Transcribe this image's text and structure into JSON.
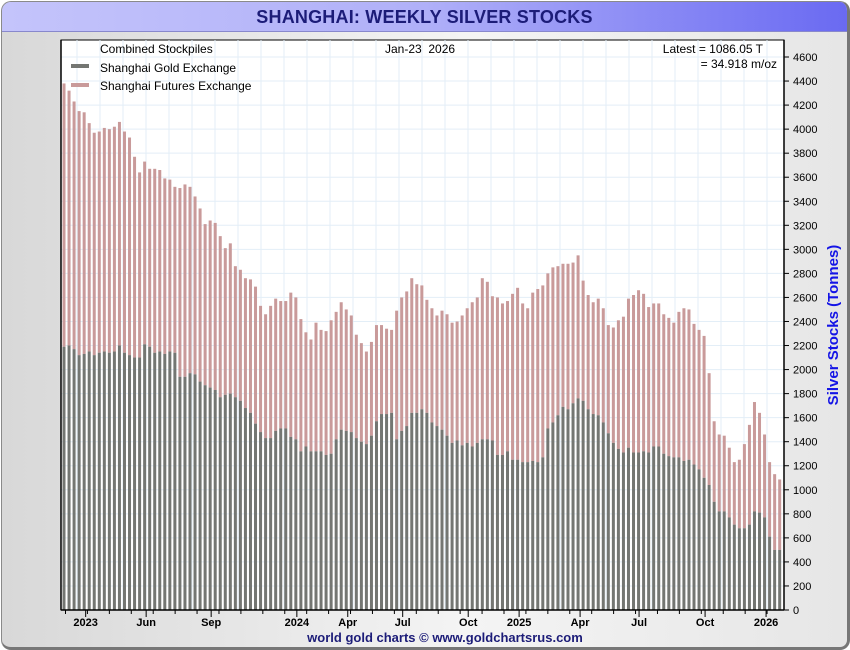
{
  "chart_data": {
    "type": "bar",
    "stacked": true,
    "title": "SHANGHAI: WEEKLY SILVER STOCKS",
    "subtitle": "Combined Stockpiles",
    "date_label": "Jan-23  2026",
    "latest_line1": "Latest = 1086.05 T",
    "latest_line2": "= 34.918 m/oz",
    "xlabel": "",
    "ylabel": "Silver Stocks (Tonnes)",
    "ylim": [
      0,
      4740
    ],
    "y_ticks": [
      "0",
      "200",
      "400",
      "600",
      "800",
      "1000",
      "1200",
      "1400",
      "1600",
      "1800",
      "2000",
      "2200",
      "2400",
      "2600",
      "2800",
      "3000",
      "3200",
      "3400",
      "3600",
      "3800",
      "4000",
      "4200",
      "4400",
      "4600"
    ],
    "x_ticks": [
      {
        "label": "2023",
        "bar": 4.3,
        "bold": true
      },
      {
        "label": "Jun",
        "bar": 16.3
      },
      {
        "label": "Sep",
        "bar": 29.2
      },
      {
        "label": "2024",
        "bar": 46.2,
        "bold": true
      },
      {
        "label": "Apr",
        "bar": 56.3
      },
      {
        "label": "Jul",
        "bar": 67.2
      },
      {
        "label": "Oct",
        "bar": 80.2
      },
      {
        "label": "2025",
        "bar": 90.3,
        "bold": true
      },
      {
        "label": "Apr",
        "bar": 102.4
      },
      {
        "label": "Jul",
        "bar": 114.1
      },
      {
        "label": "Oct",
        "bar": 127.2
      },
      {
        "label": "2026",
        "bar": 139.3,
        "bold": true
      }
    ],
    "grid": true,
    "legend_position": "top-left",
    "series": [
      {
        "name": "Shanghai Gold Exchange",
        "color": "#747672",
        "values": [
          2190,
          2200,
          2170,
          2120,
          2130,
          2150,
          2120,
          2140,
          2150,
          2140,
          2150,
          2200,
          2140,
          2120,
          2100,
          2100,
          2210,
          2190,
          2140,
          2150,
          2130,
          2150,
          2140,
          1940,
          1940,
          1970,
          1960,
          1900,
          1870,
          1850,
          1830,
          1770,
          1790,
          1800,
          1770,
          1740,
          1680,
          1640,
          1550,
          1480,
          1430,
          1430,
          1490,
          1510,
          1510,
          1440,
          1420,
          1320,
          1360,
          1320,
          1320,
          1320,
          1290,
          1300,
          1420,
          1500,
          1490,
          1480,
          1430,
          1400,
          1380,
          1450,
          1570,
          1630,
          1630,
          1640,
          1420,
          1490,
          1530,
          1640,
          1640,
          1670,
          1640,
          1560,
          1530,
          1500,
          1450,
          1390,
          1410,
          1370,
          1390,
          1360,
          1390,
          1420,
          1420,
          1410,
          1290,
          1290,
          1320,
          1250,
          1250,
          1230,
          1230,
          1240,
          1230,
          1270,
          1510,
          1560,
          1620,
          1690,
          1670,
          1720,
          1760,
          1740,
          1670,
          1630,
          1620,
          1560,
          1470,
          1390,
          1340,
          1310,
          1350,
          1310,
          1310,
          1320,
          1310,
          1360,
          1360,
          1300,
          1280,
          1270,
          1270,
          1240,
          1250,
          1210,
          1170,
          1100,
          1040,
          900,
          820,
          820,
          770,
          710,
          680,
          680,
          710,
          820,
          810,
          770,
          610,
          500,
          500
        ]
      },
      {
        "name": "Shanghai Futures Exchange",
        "color": "#c99a9a",
        "values": [
          2190,
          2120,
          2060,
          2030,
          2010,
          1900,
          1850,
          1840,
          1860,
          1860,
          1870,
          1860,
          1840,
          1810,
          1670,
          1540,
          1520,
          1480,
          1530,
          1510,
          1460,
          1430,
          1380,
          1570,
          1600,
          1550,
          1480,
          1440,
          1340,
          1390,
          1390,
          1340,
          1220,
          1250,
          1090,
          1090,
          1080,
          1110,
          1140,
          1050,
          1030,
          1100,
          1100,
          1060,
          1060,
          1200,
          1180,
          1100,
          950,
          930,
          1070,
          1010,
          1030,
          1110,
          1060,
          1060,
          1010,
          970,
          860,
          820,
          770,
          780,
          800,
          740,
          710,
          690,
          1070,
          1110,
          1120,
          1120,
          1070,
          1030,
          940,
          950,
          920,
          990,
          1010,
          1000,
          990,
          1080,
          1120,
          1200,
          1210,
          1340,
          1310,
          1200,
          1310,
          1260,
          1250,
          1380,
          1430,
          1320,
          1280,
          1400,
          1440,
          1430,
          1290,
          1290,
          1240,
          1190,
          1210,
          1170,
          1190,
          1000,
          950,
          930,
          970,
          950,
          900,
          960,
          1070,
          1130,
          1240,
          1310,
          1350,
          1310,
          1210,
          1190,
          1190,
          1160,
          1150,
          1120,
          1210,
          1270,
          1250,
          1170,
          1160,
          1180,
          930,
          670,
          640,
          630,
          580,
          520,
          570,
          700,
          830,
          910,
          830,
          690,
          620,
          630,
          586
        ]
      }
    ],
    "footer": "world gold charts © www.goldchartsrus.com"
  }
}
